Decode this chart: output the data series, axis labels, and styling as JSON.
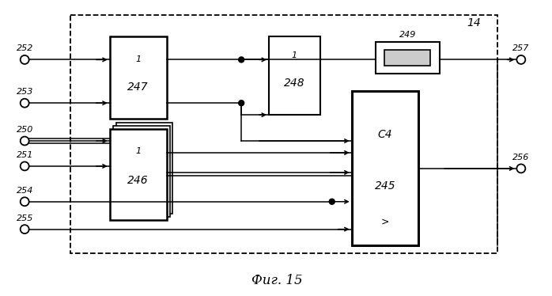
{
  "bg_color": "#ffffff",
  "fig_width": 6.98,
  "fig_height": 3.74,
  "dpi": 100,
  "caption": "Фиг. 15"
}
